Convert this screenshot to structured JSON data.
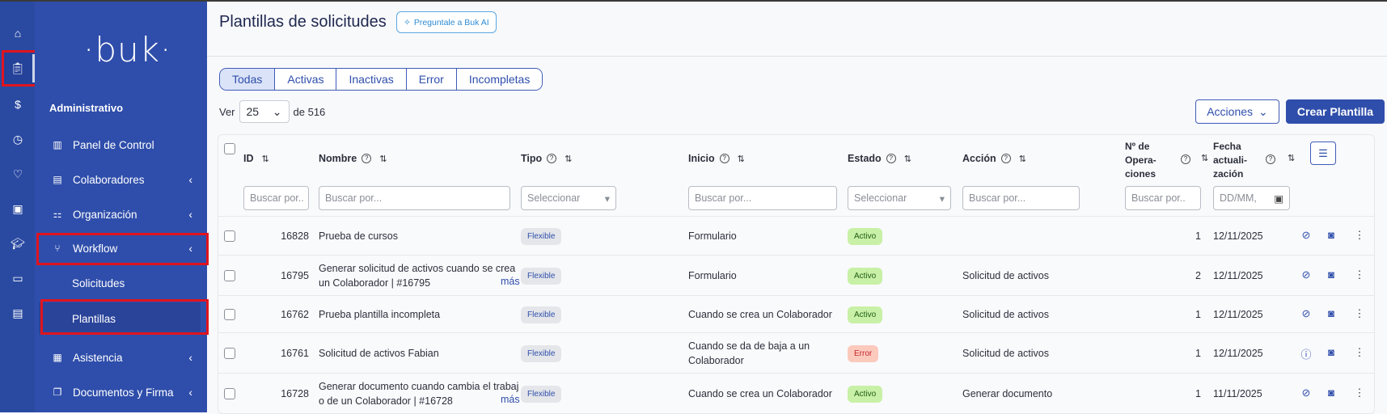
{
  "rail": {
    "icons": [
      "home-icon",
      "clipboard-icon",
      "dollar-icon",
      "clock-icon",
      "hand-heart-icon",
      "gift-icon",
      "graduation-cap-icon",
      "folder-icon",
      "store-icon"
    ]
  },
  "menu": {
    "logo": "·buk·",
    "section": "Administrativo",
    "items": [
      {
        "label": "Panel de Control",
        "icon": "chart-icon"
      },
      {
        "label": "Colaboradores",
        "icon": "badge-icon"
      },
      {
        "label": "Organización",
        "icon": "org-icon"
      },
      {
        "label": "Workflow",
        "icon": "workflow-icon"
      },
      {
        "label": "Solicitudes"
      },
      {
        "label": "Plantillas"
      },
      {
        "label": "Asistencia",
        "icon": "calendar-icon"
      },
      {
        "label": "Documentos y Firma",
        "icon": "documents-icon"
      }
    ]
  },
  "header": {
    "title": "Plantillas de solicitudes",
    "ai_button": "Preguntale a Buk AI"
  },
  "tabs": [
    "Todas",
    "Activas",
    "Inactivas",
    "Error",
    "Incompletas"
  ],
  "pagination": {
    "ver_label": "Ver",
    "page_size": "25",
    "of_label": "de 516"
  },
  "toolbar": {
    "actions": "Acciones",
    "create": "Crear Plantilla"
  },
  "table": {
    "columns": {
      "id": "ID",
      "nombre": "Nombre",
      "tipo": "Tipo",
      "inicio": "Inicio",
      "estado": "Estado",
      "accion": "Acción",
      "ops": [
        "Nº de",
        "Opera-",
        "ciones"
      ],
      "fecha": [
        "Fecha",
        "actuali-",
        "zación"
      ]
    },
    "filters": {
      "id": "Buscar por..",
      "nombre": "Buscar por...",
      "tipo": "Seleccionar",
      "inicio": "Buscar por...",
      "estado": "Seleccionar",
      "accion": "Buscar por...",
      "ops": "Buscar por..",
      "fecha": "DD/MM,"
    },
    "more_label": "más",
    "rows": [
      {
        "id": "16828",
        "nombre": [
          "Prueba de cursos"
        ],
        "more": false,
        "tipo": "Flexible",
        "inicio": [
          "Formulario"
        ],
        "estado": "Activo",
        "accion": "",
        "ops": "1",
        "fecha": "12/11/2025",
        "status_icon": "eye-off-icon"
      },
      {
        "id": "16795",
        "nombre": [
          "Generar solicitud de activos cuando se crea",
          "un Colaborador | #16795"
        ],
        "more": true,
        "tipo": "Flexible",
        "inicio": [
          "Formulario"
        ],
        "estado": "Activo",
        "accion": "Solicitud de activos",
        "ops": "2",
        "fecha": "12/11/2025",
        "status_icon": "eye-off-icon"
      },
      {
        "id": "16762",
        "nombre": [
          "Prueba plantilla incompleta"
        ],
        "more": false,
        "tipo": "Flexible",
        "inicio": [
          "Cuando se crea un Colaborador"
        ],
        "estado": "Activo",
        "accion": "Solicitud de activos",
        "ops": "1",
        "fecha": "12/11/2025",
        "status_icon": "eye-off-icon"
      },
      {
        "id": "16761",
        "nombre": [
          "Solicitud de activos Fabian"
        ],
        "more": false,
        "tipo": "Flexible",
        "inicio": [
          "Cuando se da de baja a un",
          "Colaborador"
        ],
        "estado": "Error",
        "accion": "Solicitud de activos",
        "ops": "1",
        "fecha": "12/11/2025",
        "status_icon": "info-icon"
      },
      {
        "id": "16728",
        "nombre": [
          "Generar documento cuando cambia el trabaj",
          "o de un Colaborador | #16728"
        ],
        "more": true,
        "tipo": "Flexible",
        "inicio": [
          "Cuando se crea un Colaborador"
        ],
        "estado": "Activo",
        "accion": "Generar documento",
        "ops": "1",
        "fecha": "11/11/2025",
        "status_icon": "eye-off-icon"
      }
    ]
  },
  "colors": {
    "sidebar": "#2f4eab",
    "rail": "#2a4aa2",
    "primary": "#2f4eab",
    "highlight": "#e0141e",
    "active_badge": "#c8f1a7",
    "error_badge": "#fbcabd"
  }
}
